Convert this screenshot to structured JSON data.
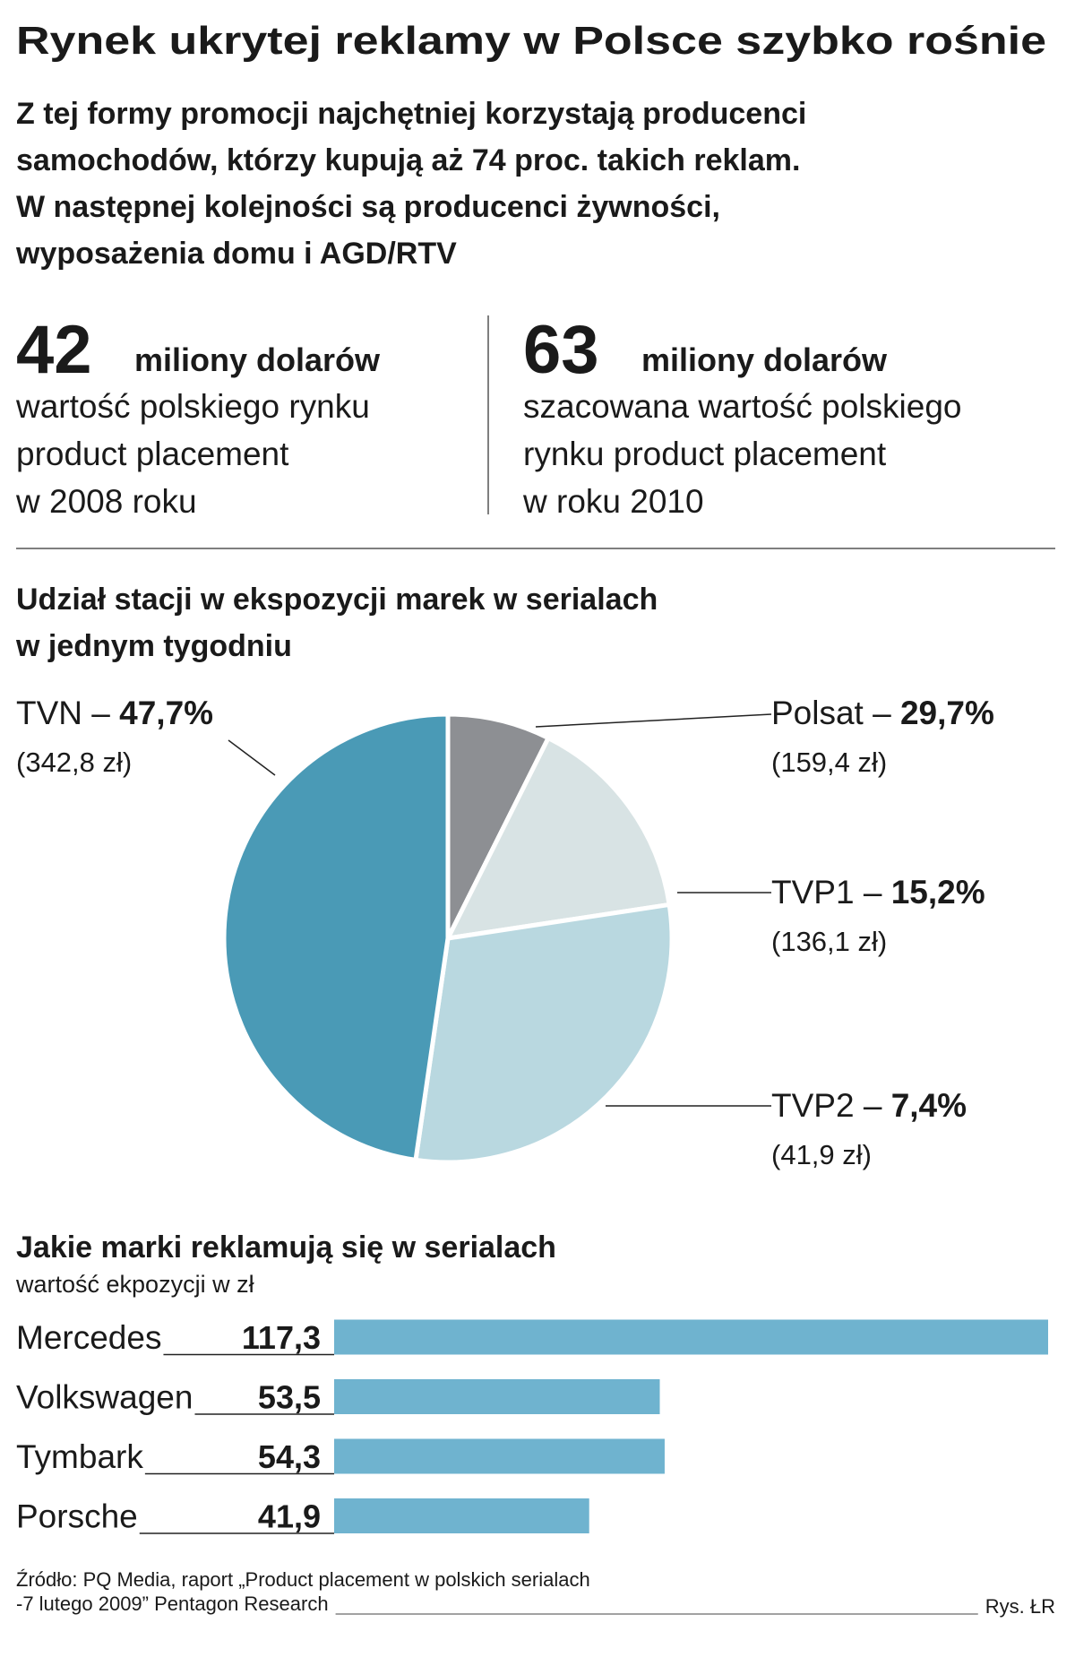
{
  "title": "Rynek ukrytej reklamy w Polsce szybko rośnie",
  "subtitle": [
    "Z tej formy promocji najchętniej korzystają producenci",
    "samochodów, którzy kupują aż 74 proc. takich reklam.",
    "W następnej kolejności są producenci żywności,",
    "wyposażenia domu i AGD/RTV"
  ],
  "stats": [
    {
      "value": 42,
      "unit": "miliony dolarów",
      "lines": [
        "wartość polskiego rynku",
        "product placement",
        "w 2008 roku"
      ]
    },
    {
      "value": 63,
      "unit": "miliony dolarów",
      "lines": [
        "szacowana wartość polskiego",
        "rynku product placement",
        "w roku 2010"
      ]
    }
  ],
  "chart_data": [
    {
      "type": "pie",
      "title": [
        "Udział stacji w ekspozycji marek w serialach",
        "w jednym tygodniu"
      ],
      "categories": [
        "TVN",
        "Polsat",
        "TVP1",
        "TVP2"
      ],
      "label_separator": "–",
      "values": [
        47.7,
        29.7,
        15.2,
        7.4
      ],
      "value_labels": [
        "47,7%",
        "29,7%",
        "15,2%",
        "7,4%"
      ],
      "amount_labels": [
        "(342,8 zł)",
        "(159,4 zł)",
        "(136,1 zł)",
        "(41,9 zł)"
      ],
      "colors": [
        "#4a9ab6",
        "#b9d8e0",
        "#d8e3e4",
        "#8d8f93"
      ]
    },
    {
      "type": "bar",
      "orientation": "horizontal",
      "title": "Jakie marki reklamują się w serialach",
      "subtitle": "wartość ekpozycji w zł",
      "categories": [
        "Mercedes",
        "Volkswagen",
        "Tymbark",
        "Porsche"
      ],
      "values": [
        117.3,
        53.5,
        54.3,
        41.9
      ],
      "value_labels": [
        "117,3",
        "53,5",
        "54,3",
        "41,9"
      ],
      "color": "#6fb3cf"
    }
  ],
  "source": [
    "Źródło: PQ Media, raport „Product placement w polskich serialach",
    "-7 lutego 2009” Pentagon Research"
  ],
  "credit": "Rys. ŁR"
}
